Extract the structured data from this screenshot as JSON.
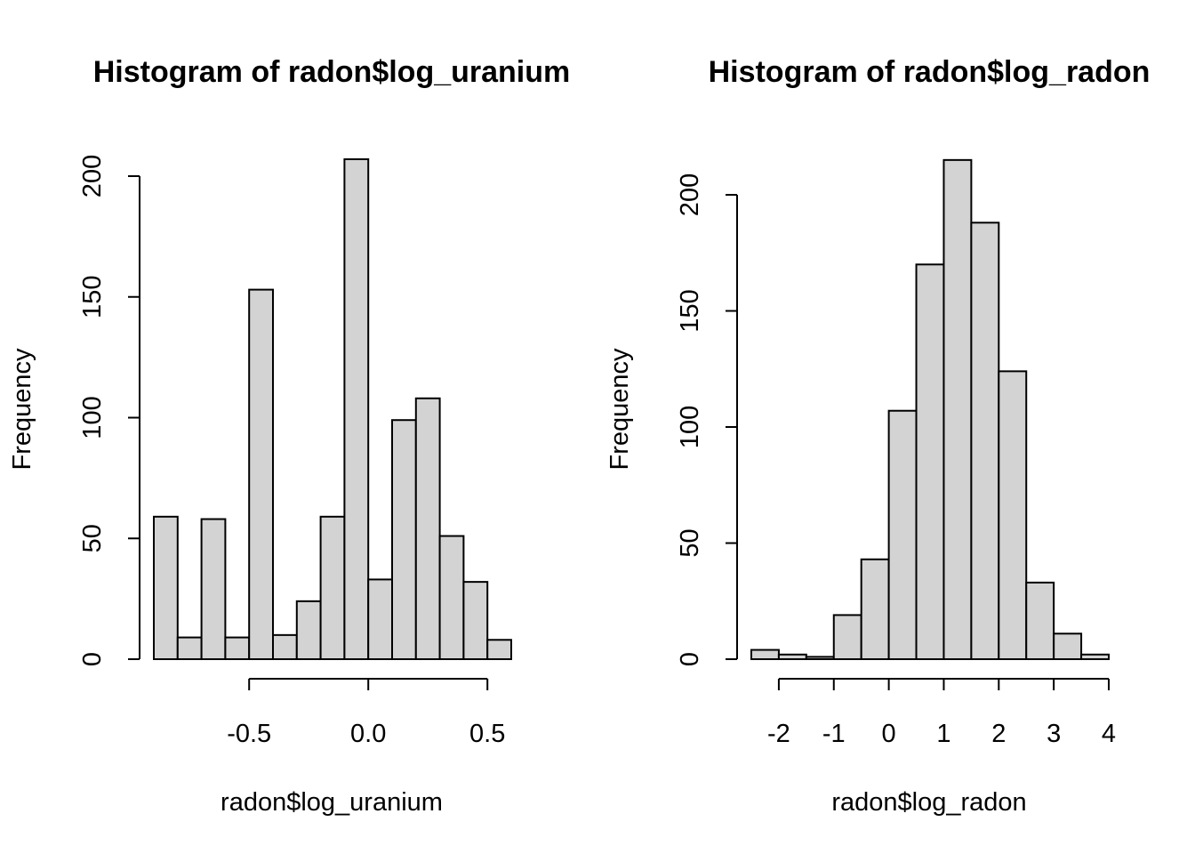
{
  "chart_data": [
    {
      "type": "bar",
      "title": "Histogram of radon$log_uranium",
      "xlabel": "radon$log_uranium",
      "ylabel": "Frequency",
      "breaks": [
        -0.9,
        -0.8,
        -0.7,
        -0.6,
        -0.5,
        -0.4,
        -0.3,
        -0.2,
        -0.1,
        0.0,
        0.1,
        0.2,
        0.3,
        0.4,
        0.5,
        0.6
      ],
      "values": [
        59,
        9,
        58,
        9,
        153,
        10,
        24,
        59,
        207,
        33,
        99,
        108,
        51,
        32,
        8
      ],
      "x_ticks": [
        -0.5,
        0.0,
        0.5
      ],
      "x_tick_labels": [
        "-0.5",
        "0.0",
        "0.5"
      ],
      "y_ticks": [
        0,
        50,
        100,
        150,
        200
      ],
      "y_tick_labels": [
        "0",
        "50",
        "100",
        "150",
        "200"
      ],
      "bar_color": "#d3d3d3"
    },
    {
      "type": "bar",
      "title": "Histogram of radon$log_radon",
      "xlabel": "radon$log_radon",
      "ylabel": "Frequency",
      "breaks": [
        -2.5,
        -2.0,
        -1.5,
        -1.0,
        -0.5,
        0.0,
        0.5,
        1.0,
        1.5,
        2.0,
        2.5,
        3.0,
        3.5,
        4.0
      ],
      "values": [
        4,
        2,
        1,
        19,
        43,
        107,
        170,
        215,
        188,
        124,
        33,
        11,
        2
      ],
      "x_ticks": [
        -2,
        -1,
        0,
        1,
        2,
        3,
        4
      ],
      "x_tick_labels": [
        "-2",
        "-1",
        "0",
        "1",
        "2",
        "3",
        "4"
      ],
      "y_ticks": [
        0,
        50,
        100,
        150,
        200
      ],
      "y_tick_labels": [
        "0",
        "50",
        "100",
        "150",
        "200"
      ],
      "bar_color": "#d3d3d3"
    }
  ]
}
